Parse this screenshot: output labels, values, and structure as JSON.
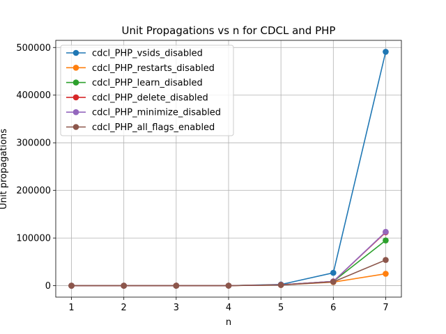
{
  "chart_data": {
    "type": "line",
    "title": "Unit Propagations vs n for CDCL and PHP",
    "xlabel": "n",
    "ylabel": "Unit propagations",
    "x": [
      1,
      2,
      3,
      4,
      5,
      6,
      7
    ],
    "xlim": [
      0.7,
      7.3
    ],
    "ylim": [
      -24000,
      515000
    ],
    "xticks": [
      1,
      2,
      3,
      4,
      5,
      6,
      7
    ],
    "yticks": [
      0,
      100000,
      200000,
      300000,
      400000,
      500000
    ],
    "grid": true,
    "legend_position": "upper left",
    "series": [
      {
        "name": "cdcl_PHP_vsids_disabled",
        "color": "#1f77b4",
        "values": [
          0,
          0,
          0,
          100,
          2500,
          27000,
          491000
        ]
      },
      {
        "name": "cdcl_PHP_restarts_disabled",
        "color": "#ff7f0e",
        "values": [
          0,
          0,
          0,
          100,
          1500,
          7500,
          25000
        ]
      },
      {
        "name": "cdcl_PHP_learn_disabled",
        "color": "#2ca02c",
        "values": [
          0,
          0,
          0,
          100,
          1800,
          9000,
          95000
        ]
      },
      {
        "name": "cdcl_PHP_delete_disabled",
        "color": "#d62728",
        "values": [
          0,
          0,
          0,
          100,
          1800,
          9000,
          112000
        ]
      },
      {
        "name": "cdcl_PHP_minimize_disabled",
        "color": "#9467bd",
        "values": [
          0,
          0,
          0,
          100,
          1800,
          9000,
          113000
        ]
      },
      {
        "name": "cdcl_PHP_all_flags_enabled",
        "color": "#8c564b",
        "values": [
          0,
          0,
          0,
          100,
          1500,
          8000,
          54000
        ]
      }
    ]
  }
}
